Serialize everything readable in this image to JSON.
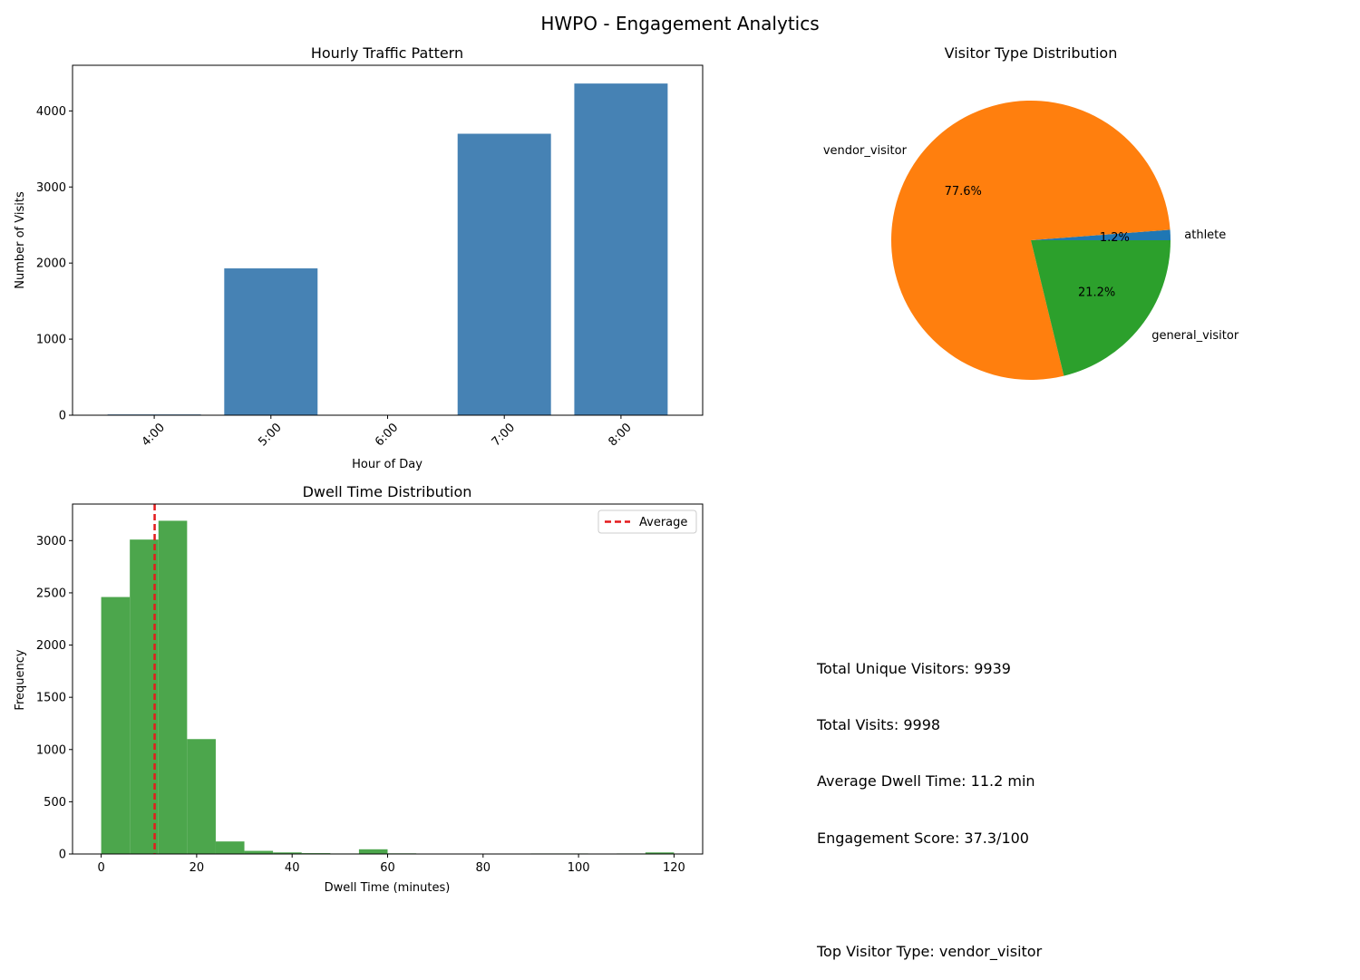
{
  "figure": {
    "title": "HWPO - Engagement Analytics"
  },
  "chart_data": [
    {
      "type": "bar",
      "title": "Hourly Traffic Pattern",
      "xlabel": "Hour of Day",
      "ylabel": "Number of Visits",
      "categories": [
        "4:00",
        "5:00",
        "6:00",
        "7:00",
        "8:00"
      ],
      "values": [
        10,
        1930,
        0,
        3700,
        4360
      ],
      "ylim": [
        0,
        4600
      ],
      "yticks": [
        0,
        1000,
        2000,
        3000,
        4000
      ],
      "color": "#4682b4",
      "grid": false
    },
    {
      "type": "pie",
      "title": "Visitor Type Distribution",
      "slices": [
        {
          "label": "athlete",
          "percent": 1.2,
          "display": "1.2%",
          "color": "#1f77b4"
        },
        {
          "label": "vendor_visitor",
          "percent": 77.6,
          "display": "77.6%",
          "color": "#ff7f0e"
        },
        {
          "label": "general_visitor",
          "percent": 21.2,
          "display": "21.2%",
          "color": "#2ca02c"
        }
      ]
    },
    {
      "type": "histogram",
      "title": "Dwell Time Distribution",
      "xlabel": "Dwell Time (minutes)",
      "ylabel": "Frequency",
      "bin_edges": [
        0,
        6,
        12,
        18,
        24,
        30,
        36,
        42,
        48,
        54,
        60,
        66,
        72,
        78,
        84,
        90,
        96,
        102,
        108,
        114,
        120
      ],
      "counts": [
        2460,
        3010,
        3190,
        1100,
        120,
        30,
        15,
        8,
        5,
        45,
        6,
        4,
        3,
        0,
        0,
        5,
        5,
        0,
        5,
        15
      ],
      "xlim": [
        -6,
        126
      ],
      "ylim": [
        0,
        3350
      ],
      "xticks": [
        0,
        20,
        40,
        60,
        80,
        100,
        120
      ],
      "yticks": [
        0,
        500,
        1000,
        1500,
        2000,
        2500,
        3000
      ],
      "color": "#4ca64c",
      "average_line": {
        "label": "Average",
        "value": 11.2,
        "color": "#e41a1c",
        "style": "dashed"
      },
      "legend_position": "upper right"
    }
  ],
  "summary": {
    "lines": [
      "Total Unique Visitors: 9939",
      "Total Visits: 9998",
      "Average Dwell Time: 11.2 min",
      "Engagement Score: 37.3/100",
      "",
      "Top Visitor Type: vendor_visitor"
    ]
  }
}
